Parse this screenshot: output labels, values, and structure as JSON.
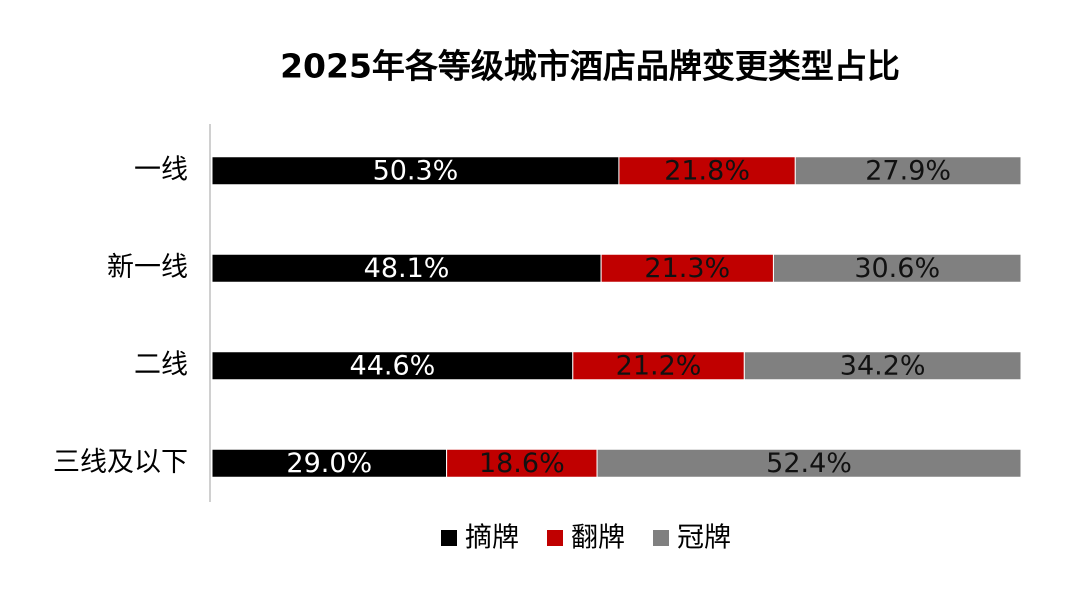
{
  "chart_data": {
    "type": "stacked-bar",
    "orientation": "horizontal",
    "title": "2025年各等级城市酒店品牌变更类型占比",
    "categories": [
      "一线",
      "新一线",
      "二线",
      "三线及以下"
    ],
    "xlim": [
      0,
      100
    ],
    "series": [
      {
        "name": "摘牌",
        "color": "#000000",
        "values": [
          50.3,
          48.1,
          44.6,
          29.0
        ],
        "value_labels": [
          "50.3%",
          "48.1%",
          "44.6%",
          "29.0%"
        ]
      },
      {
        "name": "翻牌",
        "color": "#c00000",
        "values": [
          21.8,
          21.3,
          21.2,
          18.6
        ],
        "value_labels": [
          "21.8%",
          "21.3%",
          "21.2%",
          "18.6%"
        ]
      },
      {
        "name": "冠牌",
        "color": "#808080",
        "values": [
          27.9,
          30.6,
          34.2,
          52.4
        ],
        "value_labels": [
          "27.9%",
          "30.6%",
          "34.2%",
          "52.4%"
        ]
      }
    ],
    "legend": "bottom"
  }
}
